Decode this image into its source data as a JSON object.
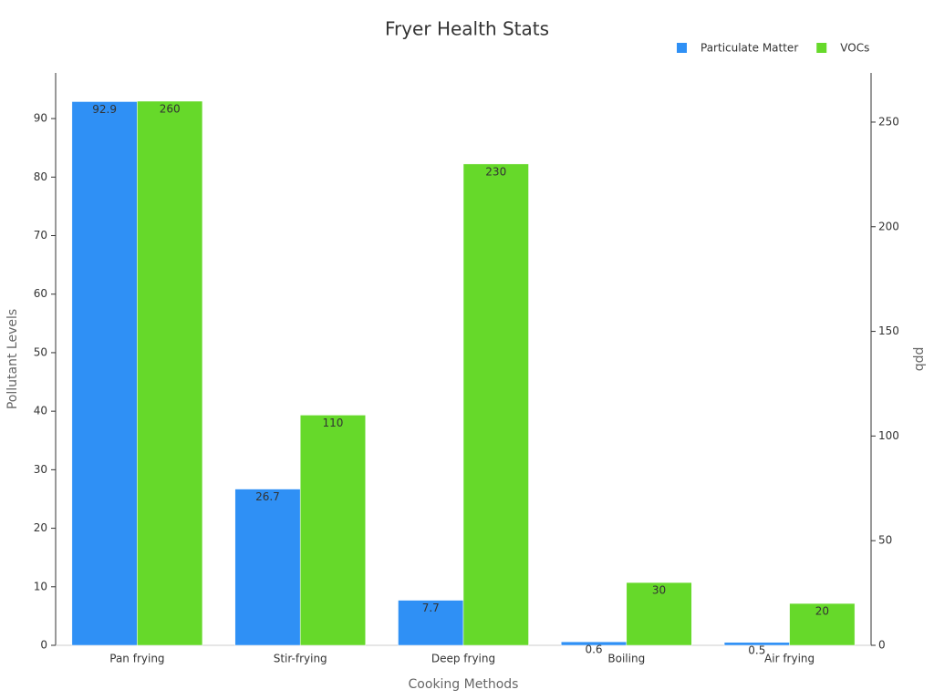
{
  "chart_data": {
    "type": "bar",
    "title": "Fryer Health Stats",
    "x_label": "Cooking Methods",
    "y_label": "Pollutant Levels",
    "y2_label": "ppb",
    "categories": [
      "Pan frying",
      "Stir-frying",
      "Deep frying",
      "Boiling",
      "Air frying"
    ],
    "series": [
      {
        "name": "Particulate Matter",
        "color": "#2f90f5",
        "values": [
          92.9,
          26.7,
          7.7,
          0.6,
          0.5
        ]
      },
      {
        "name": "VOCs",
        "color": "#66d92a",
        "axis": "y2",
        "values": [
          260,
          110,
          230,
          30,
          20
        ]
      }
    ],
    "ylim": [
      0,
      97.8
    ],
    "yticks": [
      0,
      10,
      20,
      30,
      40,
      50,
      60,
      70,
      80,
      90
    ],
    "y2lim": [
      0,
      273.5
    ],
    "y2ticks": [
      0,
      50,
      100,
      150,
      200,
      250
    ],
    "legend": "top-right"
  }
}
